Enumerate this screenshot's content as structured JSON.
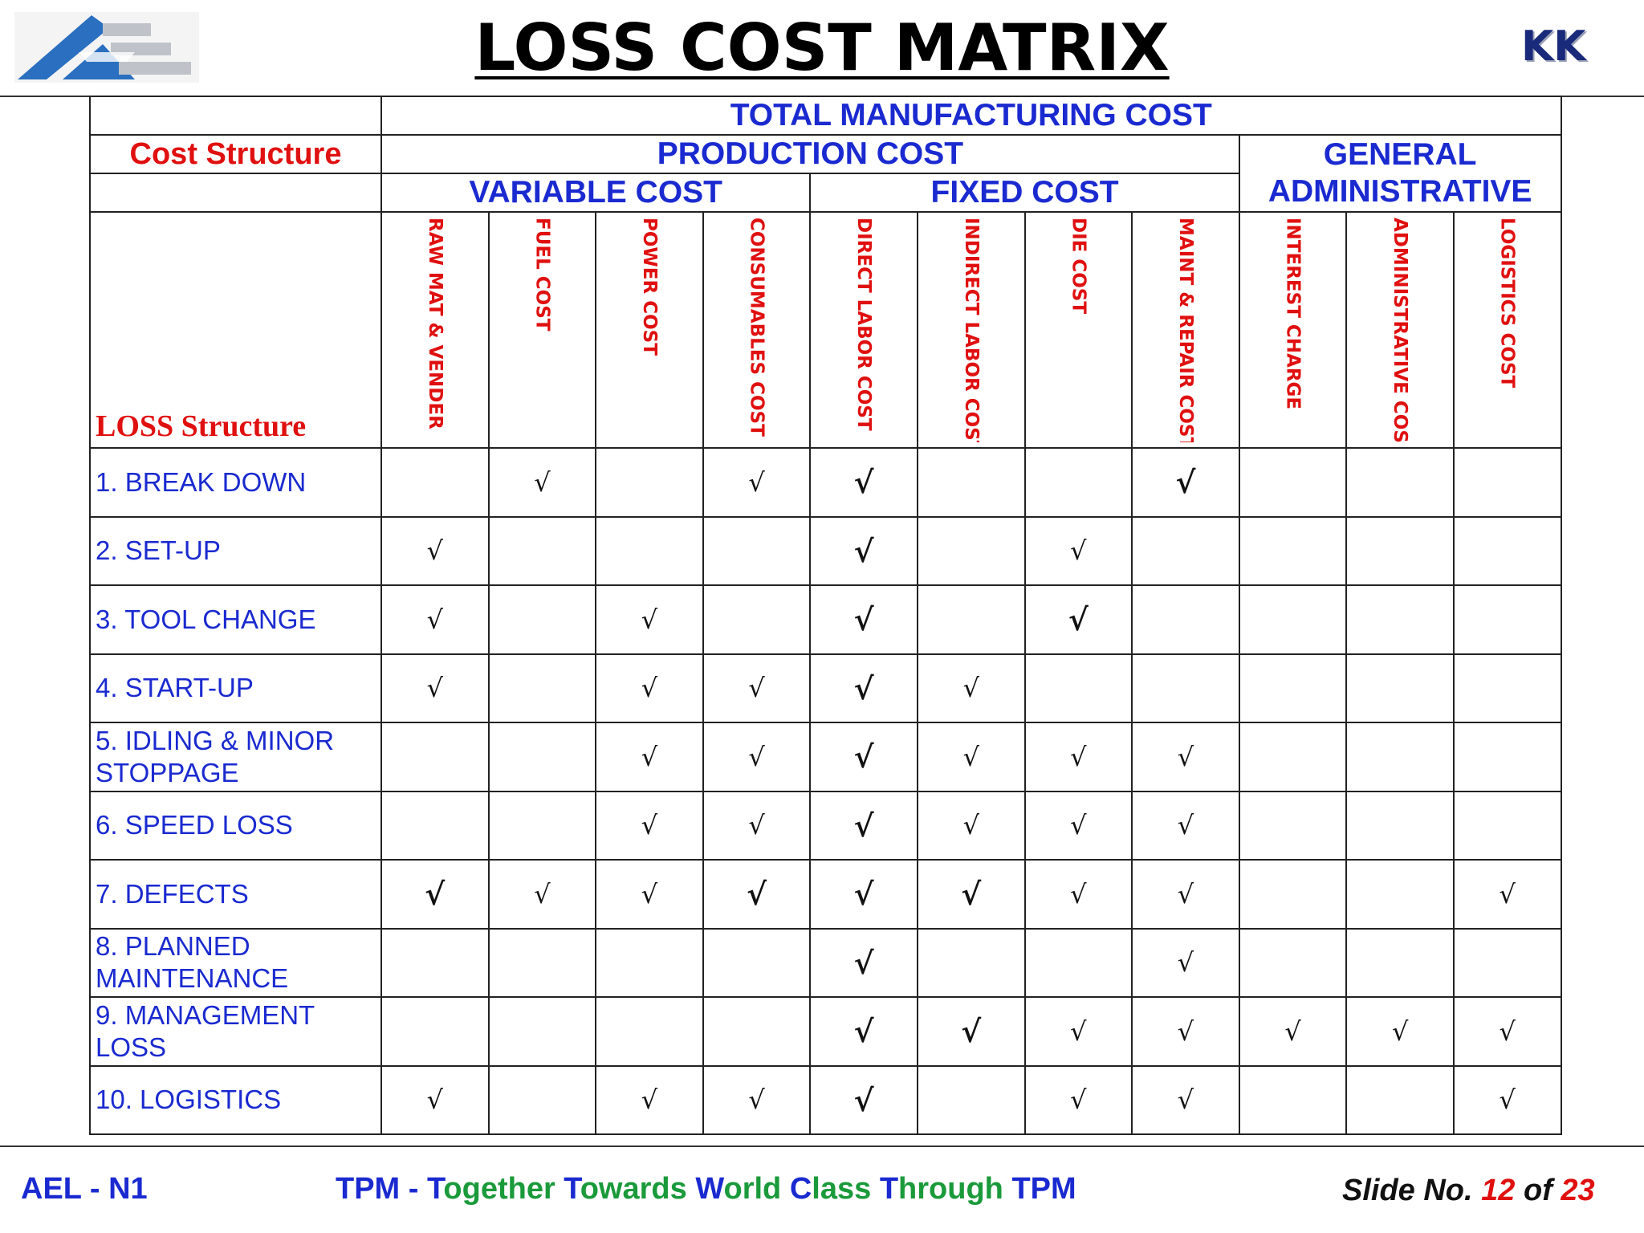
{
  "header": {
    "title": "LOSS COST MATRIX",
    "badge": "KK"
  },
  "table": {
    "top_header": "TOTAL MANUFACTURING COST",
    "cost_structure_label": "Cost Structure",
    "production_cost": "PRODUCTION COST",
    "general_admin_line1": "GENERAL",
    "general_admin_line2": "ADMINISTRATIVE",
    "variable_cost": "VARIABLE COST",
    "fixed_cost": "FIXED COST",
    "loss_structure_label": "LOSS Structure",
    "columns": [
      "RAW MAT & VENDER",
      "FUEL COST",
      "POWER COST",
      "CONSUMABLES COST",
      "DIRECT LABOR COST",
      "INDIRECT LABOR COST",
      "DIE COST",
      "MAINT & REPAIR COST",
      "INTEREST CHARGE",
      "ADMINISTRATIVE COSTS",
      "LOGISTICS COST"
    ],
    "check_symbol": "√",
    "rows": [
      {
        "label": "1. BREAK DOWN",
        "marks": [
          "",
          "n",
          "",
          "n",
          "b",
          "",
          "",
          "b",
          "",
          "",
          ""
        ]
      },
      {
        "label": "2.   SET-UP",
        "marks": [
          "n",
          "",
          "",
          "",
          "b",
          "",
          "n",
          "",
          "",
          "",
          ""
        ]
      },
      {
        "label": "3.   TOOL CHANGE",
        "marks": [
          "n",
          "",
          "n",
          "",
          "b",
          "",
          "b",
          "",
          "",
          "",
          ""
        ]
      },
      {
        "label": "4.   START-UP",
        "marks": [
          "n",
          "",
          "n",
          "n",
          "b",
          "n",
          "",
          "",
          "",
          "",
          ""
        ]
      },
      {
        "label": "5.   IDLING & MINOR STOPPAGE",
        "marks": [
          "",
          "",
          "n",
          "n",
          "b",
          "n",
          "n",
          "n",
          "",
          "",
          ""
        ]
      },
      {
        "label": "6.   SPEED LOSS",
        "marks": [
          "",
          "",
          "n",
          "n",
          "b",
          "n",
          "n",
          "n",
          "",
          "",
          ""
        ]
      },
      {
        "label": "7.   DEFECTS",
        "marks": [
          "b",
          "n",
          "n",
          "b",
          "b",
          "b",
          "n",
          "n",
          "",
          "",
          "n"
        ]
      },
      {
        "label": "8. PLANNED MAINTENANCE",
        "marks": [
          "",
          "",
          "",
          "",
          "b",
          "",
          "",
          "n",
          "",
          "",
          ""
        ]
      },
      {
        "label": "9. MANAGEMENT LOSS",
        "marks": [
          "",
          "",
          "",
          "",
          "b",
          "b",
          "n",
          "n",
          "n",
          "n",
          "n"
        ]
      },
      {
        "label": "10. LOGISTICS",
        "marks": [
          "n",
          "",
          "n",
          "n",
          "b",
          "",
          "n",
          "n",
          "",
          "",
          "n"
        ]
      }
    ]
  },
  "footer": {
    "left": "AEL - N1",
    "tagline": [
      {
        "t": "TPM - ",
        "c": "#1a2ad0"
      },
      {
        "t": "T",
        "c": "#1a2ad0"
      },
      {
        "t": "ogether ",
        "c": "#1a9a3a"
      },
      {
        "t": "T",
        "c": "#1a2ad0"
      },
      {
        "t": "owards ",
        "c": "#1a9a3a"
      },
      {
        "t": "W",
        "c": "#1a2ad0"
      },
      {
        "t": "orld ",
        "c": "#1a9a3a"
      },
      {
        "t": "C",
        "c": "#1a2ad0"
      },
      {
        "t": "lass ",
        "c": "#1a9a3a"
      },
      {
        "t": "T",
        "c": "#1a2ad0"
      },
      {
        "t": "hrough ",
        "c": "#1a9a3a"
      },
      {
        "t": "TPM",
        "c": "#1a2ad0"
      }
    ],
    "slide_label": "Slide No.",
    "slide_num": "12",
    "of_label": "of",
    "slide_total": "23"
  },
  "colors": {
    "blue": "#1a2ad0",
    "red": "#e01010",
    "green": "#1a9a3a"
  }
}
